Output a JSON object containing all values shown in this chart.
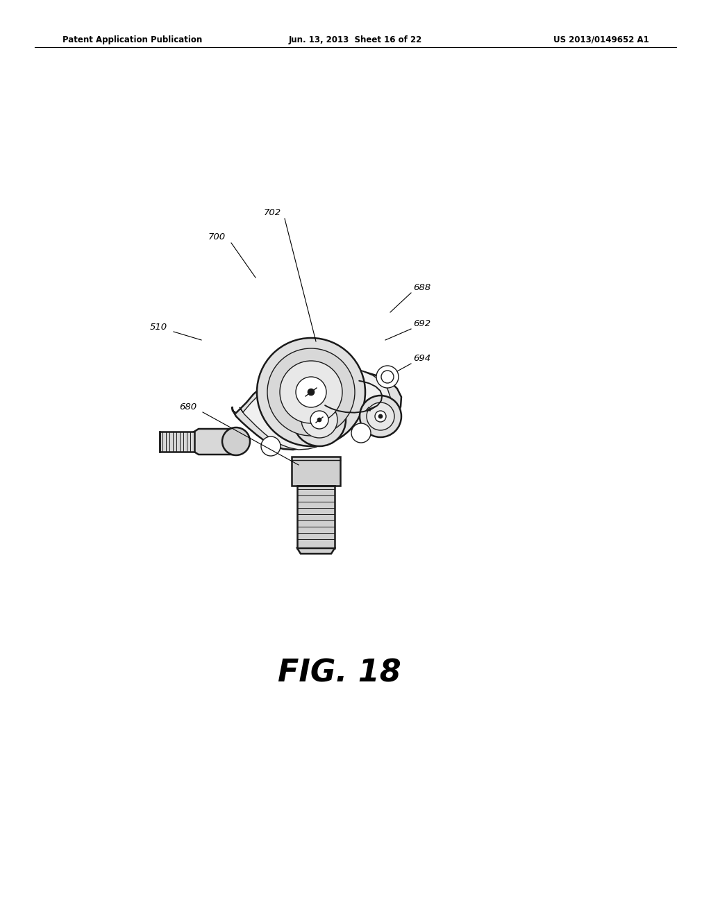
{
  "background_color": "#ffffff",
  "header_left": "Patent Application Publication",
  "header_mid": "Jun. 13, 2013  Sheet 16 of 22",
  "header_right": "US 2013/0149652 A1",
  "fig_caption": "FIG. 18",
  "color_line": "#1a1a1a",
  "color_body": "#e8e8e8",
  "color_inner": "#f0f0f0",
  "color_white": "#ffffff",
  "lw_main": 1.8,
  "lw_thin": 1.0,
  "lw_thread": 0.7,
  "label_fontsize": 9.5
}
